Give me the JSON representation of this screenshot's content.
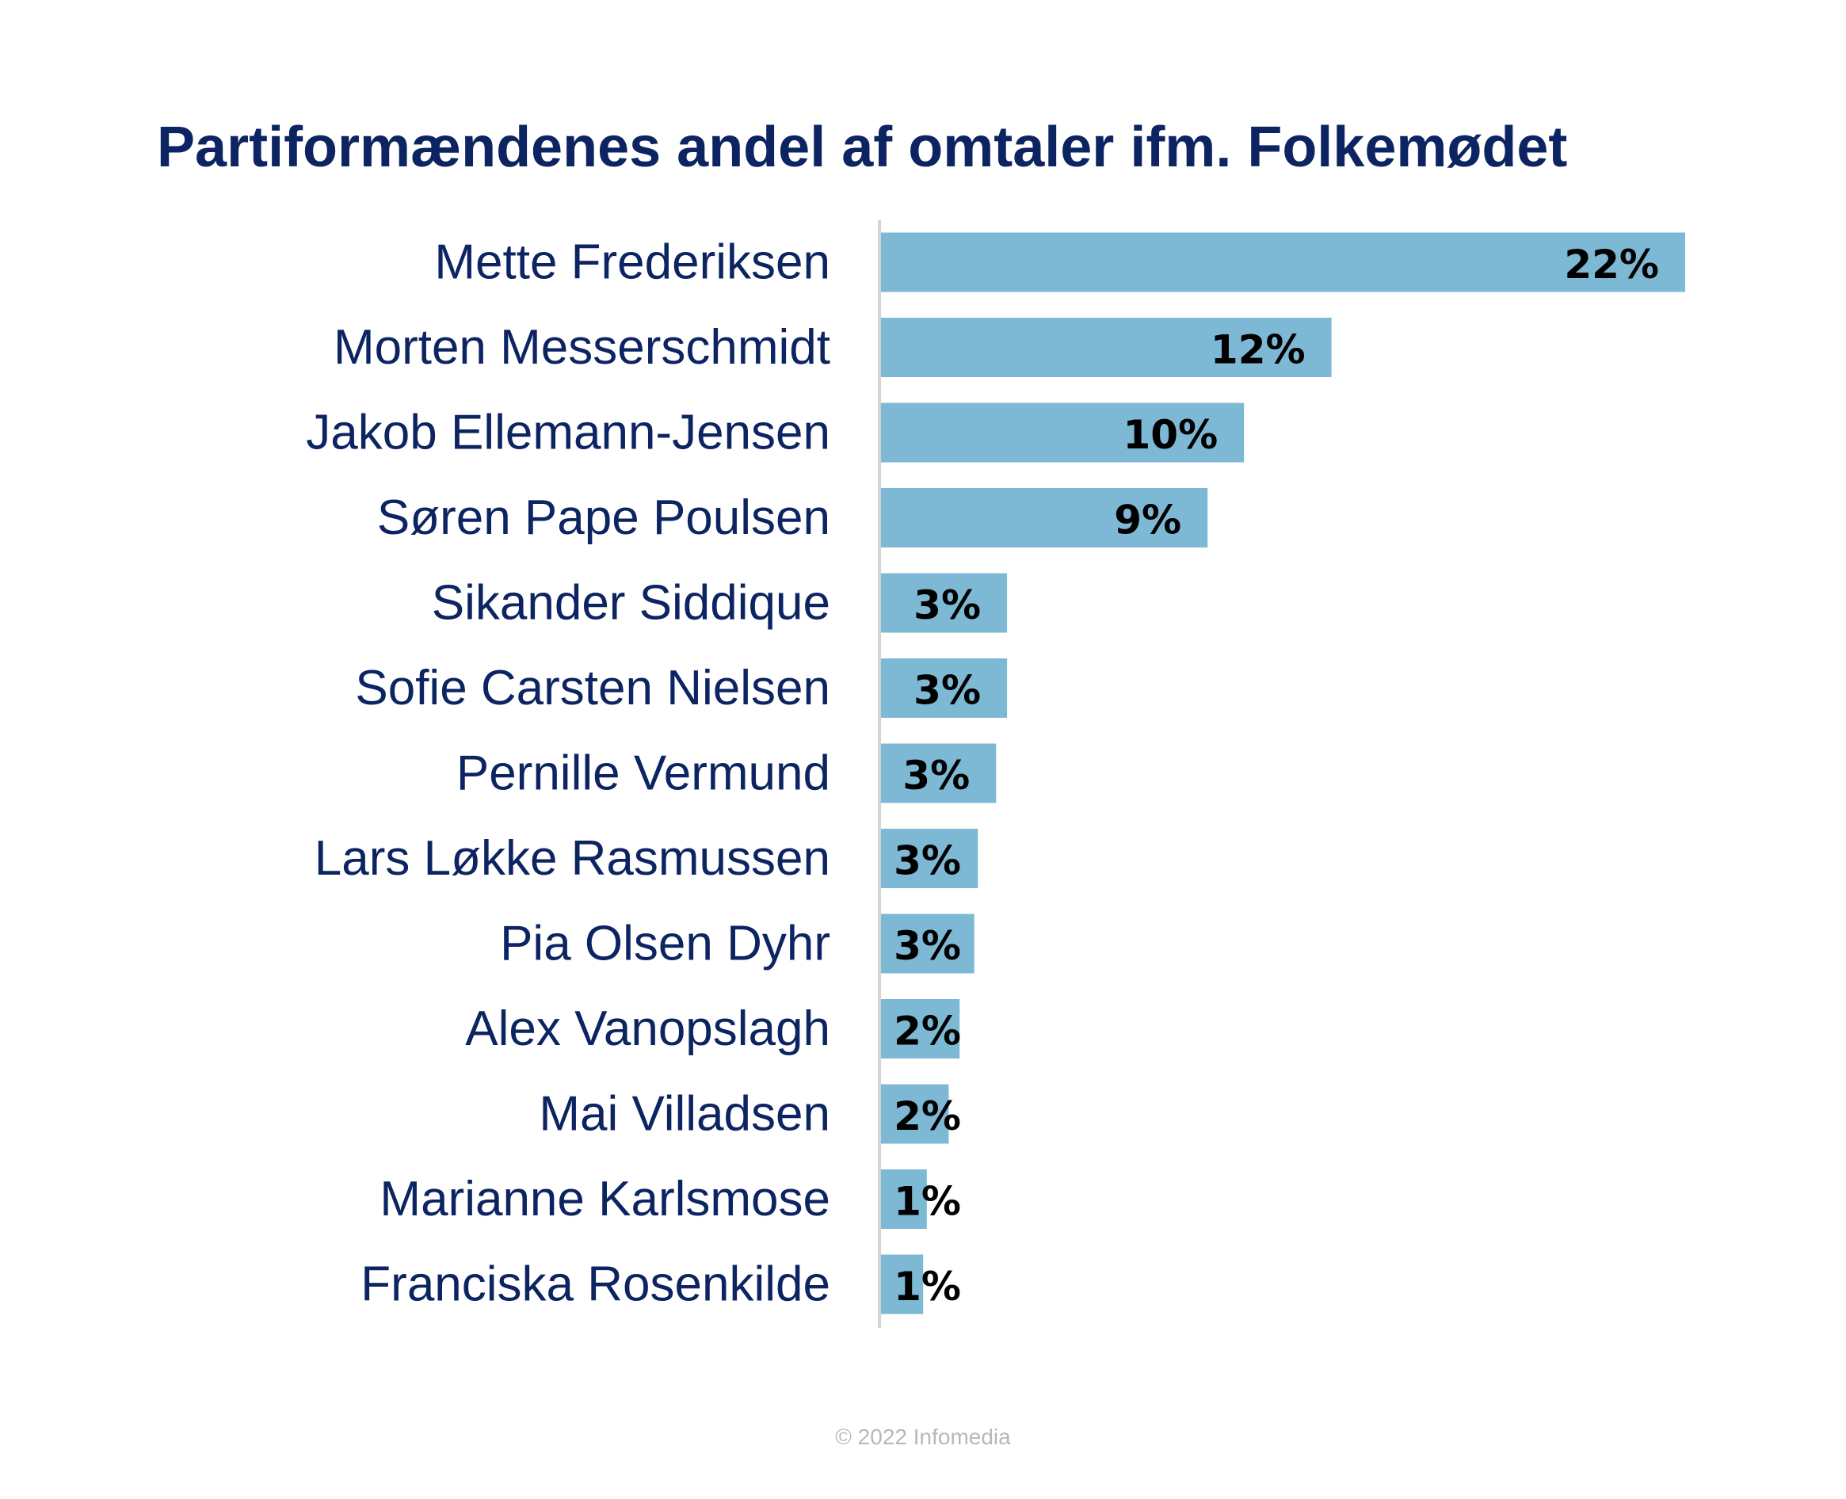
{
  "chart_data": {
    "type": "bar",
    "orientation": "horizontal",
    "title": "Partiformændenes andel af omtaler ifm. Folkemødet",
    "categories": [
      "Mette Frederiksen",
      "Morten Messerschmidt",
      "Jakob Ellemann-Jensen",
      "Søren Pape Poulsen",
      "Sikander Siddique",
      "Sofie Carsten Nielsen",
      "Pernille Vermund",
      "Lars Løkke Rasmussen",
      "Pia Olsen Dyhr",
      "Alex Vanopslagh",
      "Mai Villadsen",
      "Marianne Karlsmose",
      "Franciska Rosenkilde"
    ],
    "values": [
      22.1,
      12.4,
      10.0,
      9.0,
      3.5,
      3.5,
      3.2,
      2.7,
      2.6,
      2.2,
      1.9,
      1.3,
      1.2
    ],
    "value_labels": [
      "22%",
      "12%",
      "10%",
      "9%",
      "3%",
      "3%",
      "3%",
      "3%",
      "3%",
      "2%",
      "2%",
      "1%",
      "1%"
    ],
    "xlim": [
      0,
      22.1
    ],
    "xlabel": "",
    "ylabel": "",
    "grid": false,
    "legend": "none",
    "colors": {
      "bar": "#7db8d4",
      "title": "#0c2461",
      "category_label": "#0c2461",
      "value_label": "#000000",
      "axis": "#d3d3d3"
    }
  },
  "footer": {
    "copyright": "© 2022 Infomedia"
  }
}
